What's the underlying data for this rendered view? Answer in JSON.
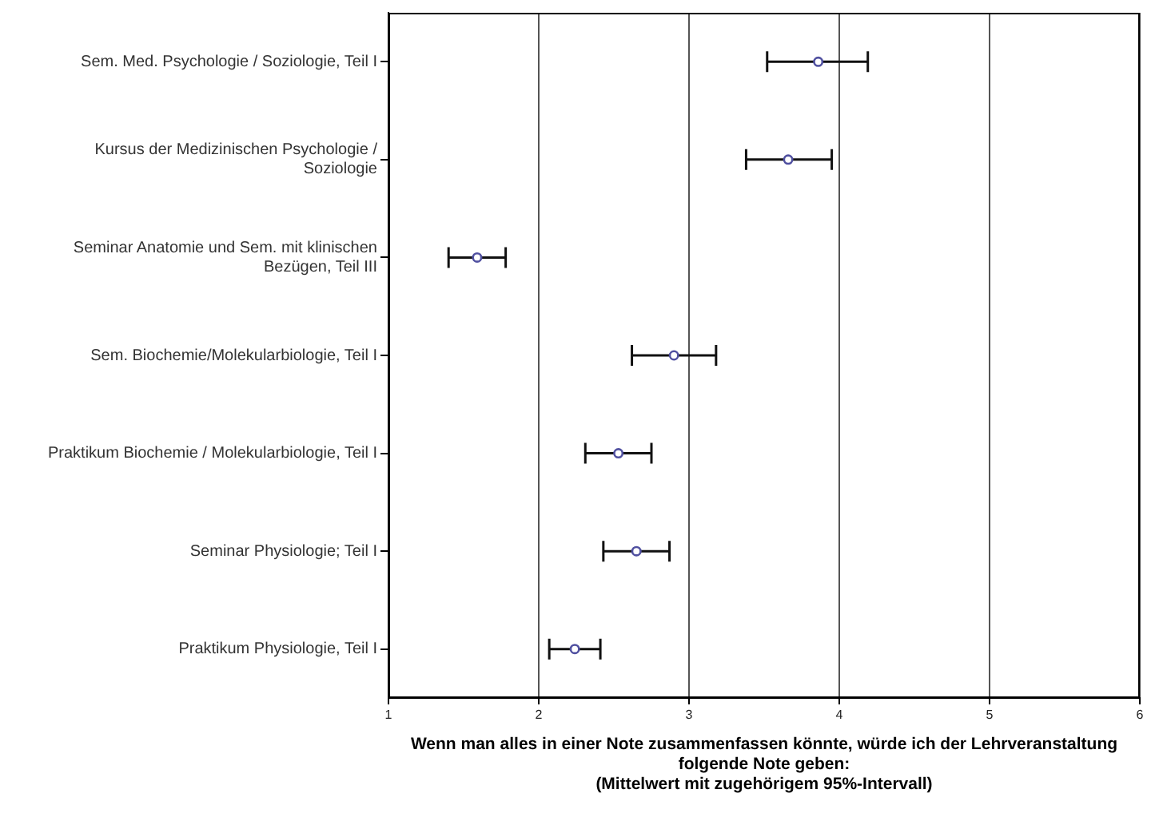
{
  "chart_data": {
    "type": "scatter",
    "orientation": "horizontal",
    "categories": [
      "Sem. Med. Psychologie / Soziologie, Teil I",
      "Kursus der Medizinischen Psychologie / Soziologie",
      "Seminar Anatomie und Sem. mit klinischen Bezügen, Teil III",
      "Sem. Biochemie/Molekularbiologie, Teil I",
      "Praktikum Biochemie / Molekularbiologie, Teil I",
      "Seminar Physiologie; Teil I",
      "Praktikum Physiologie, Teil I"
    ],
    "values": [
      3.86,
      3.66,
      1.59,
      2.9,
      2.53,
      2.65,
      2.24
    ],
    "errors": [
      [
        3.52,
        4.19
      ],
      [
        3.38,
        3.95
      ],
      [
        1.4,
        1.78
      ],
      [
        2.62,
        3.18
      ],
      [
        2.31,
        2.75
      ],
      [
        2.43,
        2.87
      ],
      [
        2.07,
        2.41
      ]
    ],
    "color": "#5050a0",
    "marker": "circle",
    "xlim": [
      1,
      6
    ],
    "xticks": [
      1,
      2,
      3,
      4,
      5,
      6
    ],
    "grid": "x",
    "xlabel": "Wenn man alles in einer Note zusammenfassen könnte, würde ich der Lehrveranstaltung folgende Note geben:",
    "annotations": [
      "(Mittelwert mit zugehörigem 95%-Intervall)"
    ]
  }
}
